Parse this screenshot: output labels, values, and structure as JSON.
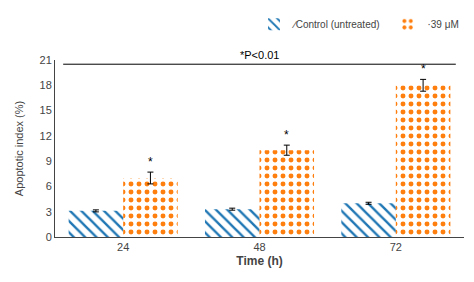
{
  "chart_data": {
    "type": "bar",
    "categories": [
      "24",
      "48",
      "72"
    ],
    "series": [
      {
        "name": "∕Control (untreated)",
        "values": [
          3.1,
          3.3,
          4.0
        ],
        "errors": [
          0.12,
          0.12,
          0.12
        ]
      },
      {
        "name": "⋅39 μM",
        "values": [
          7.0,
          10.3,
          18.0
        ],
        "errors": [
          0.7,
          0.6,
          0.7
        ]
      }
    ],
    "xlabel": "Time (h)",
    "ylabel": "Apoptotic index (%)",
    "ylim": [
      0,
      21
    ],
    "yticks": [
      0,
      3,
      6,
      9,
      12,
      15,
      18,
      21
    ],
    "grid": false,
    "legend": "upper right",
    "annotations": [
      {
        "text": "*",
        "category": "24",
        "series": "⋅39 μM"
      },
      {
        "text": "*",
        "category": "48",
        "series": "⋅39 μM"
      },
      {
        "text": "*",
        "category": "72",
        "series": "⋅39 μM"
      },
      {
        "text": "*P<0.01",
        "y": 20.5
      }
    ]
  }
}
